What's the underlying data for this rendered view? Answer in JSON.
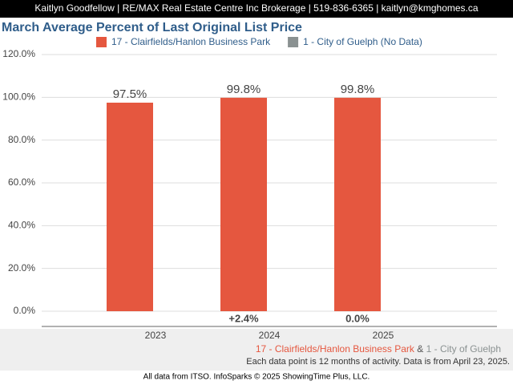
{
  "header": "Kaitlyn Goodfellow | RE/MAX Real Estate Centre Inc Brokerage | 519-836-6365 | kaitlyn@kmghomes.ca",
  "chart_data": {
    "type": "bar",
    "title": "March Average Percent of Last Original List Price",
    "categories": [
      "2023",
      "2024",
      "2025"
    ],
    "series": [
      {
        "name": "17 - Clairfields/Hanlon Business Park",
        "color": "#e5573f",
        "values": [
          97.5,
          99.8,
          99.8
        ],
        "value_labels": [
          "97.5%",
          "99.8%",
          "99.8%"
        ]
      },
      {
        "name": "1 - City of Guelph (No Data)",
        "color": "#8a9191",
        "values": [
          null,
          null,
          null
        ]
      }
    ],
    "change_labels": [
      null,
      "+2.4%",
      "0.0%"
    ],
    "ylim": [
      0,
      120
    ],
    "yticks": [
      {
        "value": 0,
        "label": "0.0%"
      },
      {
        "value": 20,
        "label": "20.0%"
      },
      {
        "value": 40,
        "label": "40.0%"
      },
      {
        "value": 60,
        "label": "60.0%"
      },
      {
        "value": 80,
        "label": "80.0%"
      },
      {
        "value": 100,
        "label": "100.0%"
      },
      {
        "value": 120,
        "label": "120.0%"
      }
    ],
    "grid": true
  },
  "footer": {
    "area_primary": "17 - Clairfields/Hanlon Business Park",
    "joiner": "&",
    "area_secondary": "1 - City of Guelph",
    "note": "Each data point is 12 months of activity. Data is from April 23, 2025.",
    "source": "All data from ITSO. InfoSparks © 2025 ShowingTime Plus, LLC."
  }
}
